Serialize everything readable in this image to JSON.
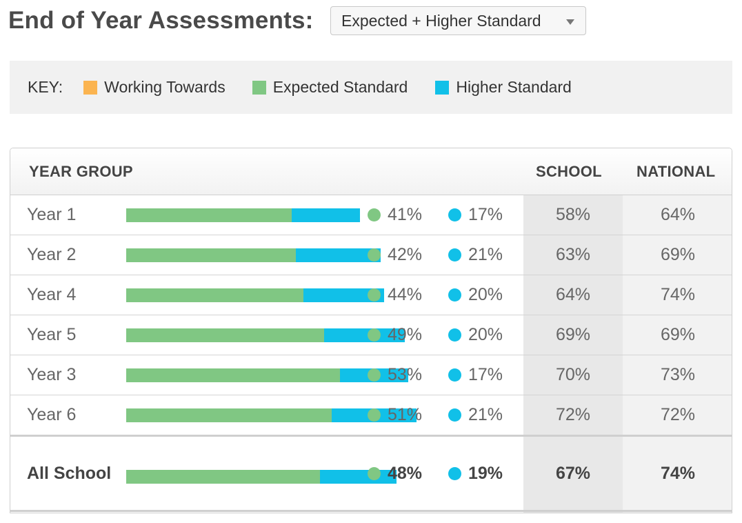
{
  "header": {
    "title": "End of Year Assessments:",
    "dropdown_value": "Expected + Higher Standard"
  },
  "key": {
    "label": "KEY:",
    "items": [
      {
        "label": "Working Towards",
        "color": "#fbb450"
      },
      {
        "label": "Expected Standard",
        "color": "#80c783"
      },
      {
        "label": "Higher Standard",
        "color": "#11c0e8"
      }
    ]
  },
  "table": {
    "headers": {
      "year_group": "YEAR GROUP",
      "school": "SCHOOL",
      "national": "NATIONAL"
    },
    "rows": [
      {
        "name": "Year 1",
        "expected": "41%",
        "higher": "17%",
        "school": "58%",
        "national": "64%"
      },
      {
        "name": "Year 2",
        "expected": "42%",
        "higher": "21%",
        "school": "63%",
        "national": "69%"
      },
      {
        "name": "Year 4",
        "expected": "44%",
        "higher": "20%",
        "school": "64%",
        "national": "74%"
      },
      {
        "name": "Year 5",
        "expected": "49%",
        "higher": "20%",
        "school": "69%",
        "national": "69%"
      },
      {
        "name": "Year 3",
        "expected": "53%",
        "higher": "17%",
        "school": "70%",
        "national": "73%"
      },
      {
        "name": "Year 6",
        "expected": "51%",
        "higher": "21%",
        "school": "72%",
        "national": "72%"
      }
    ],
    "total": {
      "name": "All School",
      "expected": "48%",
      "higher": "19%",
      "school": "67%",
      "national": "74%"
    }
  }
}
